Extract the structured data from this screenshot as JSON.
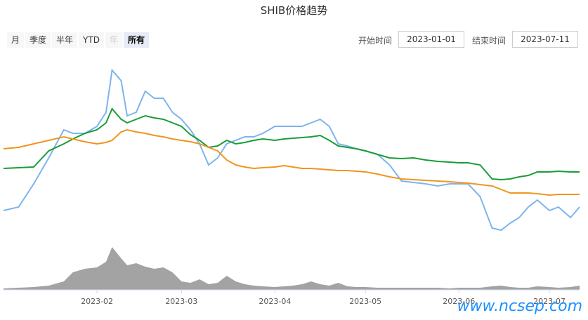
{
  "chart_data": {
    "type": "line",
    "title": "SHIB价格趋势",
    "x": [
      "2023-01-01",
      "2023-01-06",
      "2023-01-11",
      "2023-01-16",
      "2023-01-21",
      "2023-01-24",
      "2023-01-28",
      "2023-02-01",
      "2023-02-04",
      "2023-02-06",
      "2023-02-09",
      "2023-02-11",
      "2023-02-14",
      "2023-02-17",
      "2023-02-20",
      "2023-02-23",
      "2023-02-26",
      "2023-03-01",
      "2023-03-04",
      "2023-03-07",
      "2023-03-10",
      "2023-03-13",
      "2023-03-16",
      "2023-03-19",
      "2023-03-22",
      "2023-03-25",
      "2023-03-28",
      "2023-04-01",
      "2023-04-04",
      "2023-04-07",
      "2023-04-10",
      "2023-04-13",
      "2023-04-16",
      "2023-04-19",
      "2023-04-22",
      "2023-04-25",
      "2023-04-28",
      "2023-05-01",
      "2023-05-05",
      "2023-05-09",
      "2023-05-13",
      "2023-05-17",
      "2023-05-21",
      "2023-05-25",
      "2023-05-29",
      "2023-06-01",
      "2023-06-04",
      "2023-06-08",
      "2023-06-12",
      "2023-06-15",
      "2023-06-18",
      "2023-06-21",
      "2023-06-24",
      "2023-06-27",
      "2023-07-01",
      "2023-07-04",
      "2023-07-08",
      "2023-07-11"
    ],
    "xlim": [
      "2023-01-01",
      "2023-07-11"
    ],
    "xticks": [
      {
        "value": "2023-02-01",
        "label": "2023-02"
      },
      {
        "value": "2023-03-01",
        "label": "2023-03"
      },
      {
        "value": "2023-04-01",
        "label": "2023-04"
      },
      {
        "value": "2023-05-01",
        "label": "2023-05"
      },
      {
        "value": "2023-06-01",
        "label": "2023-06"
      },
      {
        "value": "2023-07-01",
        "label": "2023-07"
      }
    ],
    "ylim": [
      0,
      110
    ],
    "series": [
      {
        "color": "#7cb5ec",
        "values": [
          20,
          22,
          35.2,
          50,
          66,
          64,
          64,
          68,
          76,
          100,
          94,
          74,
          76,
          88,
          84,
          84,
          76,
          72,
          66,
          58,
          46,
          50,
          58,
          60,
          62,
          62,
          64,
          68,
          68,
          68,
          68,
          70,
          72,
          68,
          58,
          56.8,
          55.2,
          54,
          52,
          46,
          36.8,
          36,
          35.2,
          34,
          35.2,
          35.2,
          35.2,
          28,
          10,
          8.8,
          12.8,
          16,
          22,
          26,
          20,
          22,
          16,
          22
        ]
      },
      {
        "color": "#1a9c38",
        "values": [
          44,
          44.4,
          44.8,
          54,
          58,
          60.8,
          64,
          66,
          70,
          78,
          72,
          70,
          72,
          74,
          72.8,
          72,
          70,
          68,
          63.2,
          60,
          56,
          56.8,
          60,
          58,
          58.8,
          60,
          60.8,
          60,
          60.8,
          61.2,
          61.6,
          62,
          62.8,
          60,
          56.8,
          56,
          55.2,
          54,
          52,
          50,
          49.6,
          50,
          48.8,
          48,
          47.6,
          47.2,
          47.2,
          46,
          38,
          37.6,
          38,
          39.2,
          40,
          42,
          42,
          42.4,
          42,
          42
        ]
      },
      {
        "color": "#f0951f",
        "values": [
          55.2,
          56,
          58,
          60,
          62,
          60.8,
          59.2,
          58,
          58.8,
          60,
          64.8,
          66,
          64.8,
          64,
          62.8,
          62,
          60.8,
          60,
          59.2,
          58,
          56,
          54,
          48.8,
          46,
          44.8,
          44,
          44.4,
          44.8,
          45.6,
          44.8,
          44,
          44,
          43.6,
          43.2,
          42.8,
          42.8,
          42.4,
          42,
          40.8,
          39.2,
          38,
          37.6,
          37.2,
          36.8,
          36.4,
          36,
          35.6,
          34.8,
          34,
          32,
          30,
          30,
          30,
          29.6,
          28.8,
          29.2,
          29.2,
          29.2
        ]
      }
    ],
    "volume": {
      "color": "#999999",
      "ylim": [
        0,
        65
      ],
      "values": [
        2,
        3,
        4,
        6,
        12,
        25,
        30,
        32,
        40,
        61,
        45,
        35,
        38,
        33,
        30,
        32,
        25,
        12,
        10,
        15,
        8,
        10,
        20,
        12,
        8,
        6,
        5,
        4,
        5,
        6,
        8,
        12,
        8,
        6,
        10,
        5,
        4,
        4,
        3,
        3,
        3,
        3,
        3,
        3,
        2,
        3,
        3,
        3,
        5,
        6,
        4,
        3,
        3,
        5,
        4,
        3,
        4,
        6
      ]
    }
  },
  "ui": {
    "range_buttons": [
      "月",
      "季度",
      "半年",
      "YTD",
      "年",
      "所有"
    ],
    "start_label": "开始时间",
    "start_date": "2023-01-01",
    "end_label": "结束时间",
    "end_date": "2023-07-11",
    "watermark": "www.ncsep.com"
  }
}
